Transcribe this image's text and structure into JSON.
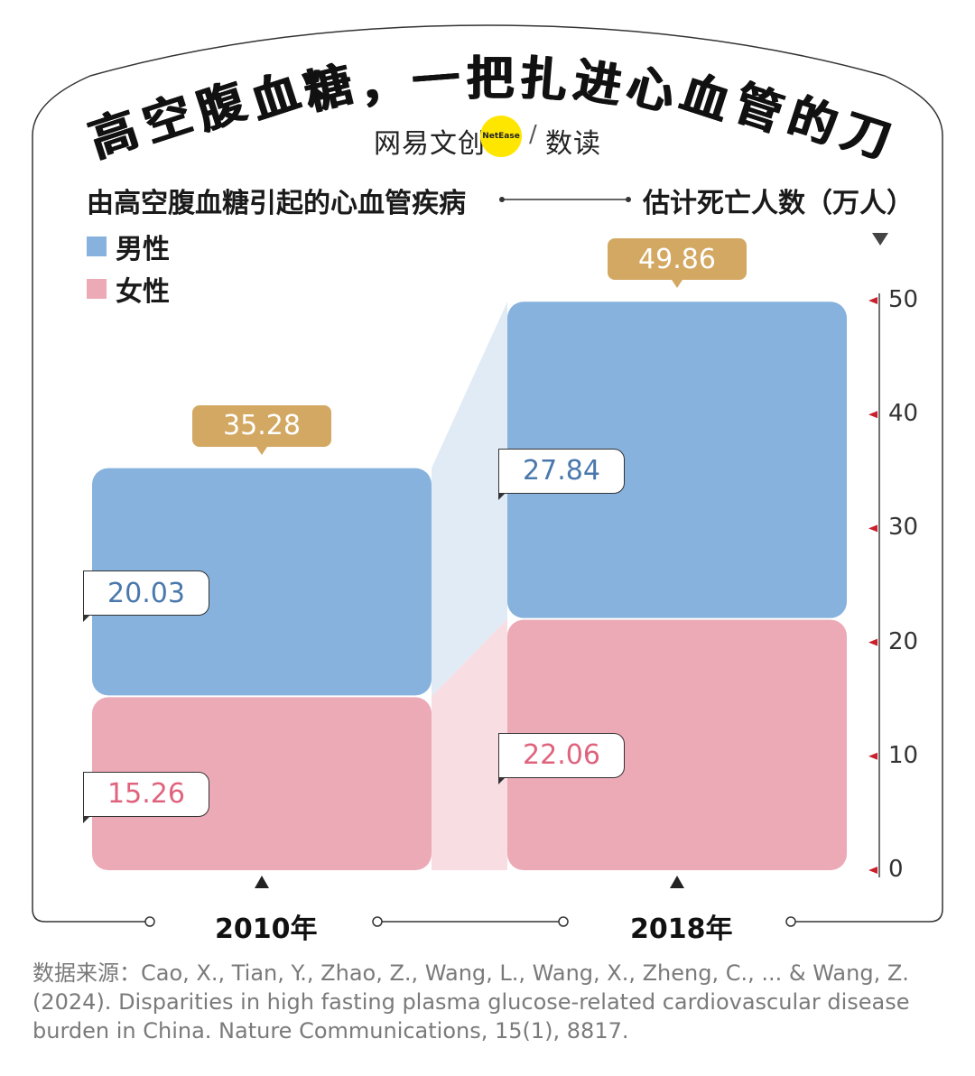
{
  "title": "高空腹血糖，一把扎进心血管的刀",
  "brand": {
    "left": "网易文创",
    "circle": "NetEase",
    "slash": "/",
    "right": "数读"
  },
  "subtitle": "由高空腹血糖引起的心血管疾病",
  "unit_label": "估计死亡人数（万人）",
  "legend": [
    {
      "label": "男性",
      "color": "#86b2dd"
    },
    {
      "label": "女性",
      "color": "#eca9b6"
    }
  ],
  "colors": {
    "male": "#86b2dd",
    "female": "#eca9b6",
    "male_connector": "#e1ebf6",
    "female_connector": "#f8dde2",
    "total": "#d3a863",
    "marker": "#c8202c"
  },
  "chart_data": {
    "type": "bar",
    "stacked": true,
    "categories": [
      "2010年",
      "2018年"
    ],
    "series": [
      {
        "name": "女性",
        "values": [
          15.26,
          22.06
        ],
        "labels": [
          "15.26",
          "22.06"
        ]
      },
      {
        "name": "男性",
        "values": [
          20.03,
          27.84
        ],
        "labels": [
          "20.03",
          "27.84"
        ]
      }
    ],
    "totals": [
      35.28,
      49.86
    ],
    "total_labels": [
      "35.28",
      "49.86"
    ],
    "ylim": [
      0,
      50
    ],
    "yticks": [
      0,
      10,
      20,
      30,
      40,
      50
    ],
    "ytick_labels": [
      "0",
      "10",
      "20",
      "30",
      "40",
      "50"
    ],
    "axis_position": "right",
    "grid": false,
    "legend_position": "top-left"
  },
  "source": "数据来源：Cao, X., Tian, Y., Zhao, Z., Wang, L., Wang, X., Zheng, C., ... & Wang, Z. (2024). Disparities in high fasting plasma glucose-related cardiovascular disease burden in China. Nature Communications, 15(1), 8817."
}
